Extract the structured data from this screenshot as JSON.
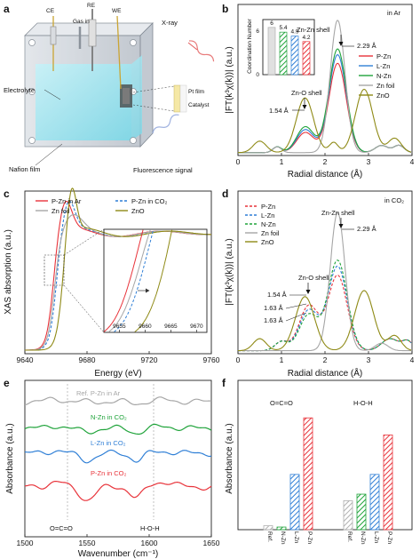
{
  "panels": {
    "a": {
      "label": "a",
      "electrode_labels": [
        "CE",
        "RE",
        "WE"
      ],
      "gas_in": "Gas in",
      "xray": "X-ray",
      "electrolyte": "Electrolyte",
      "nafion": "Nafion film",
      "pt_film": "Pt film",
      "catalyst": "Catalyst",
      "fluorescence": "Fluorescence signal"
    },
    "b": {
      "label": "b",
      "condition": "in Ar",
      "ylabel": "|FT(k³χ(k))| (a.u.)",
      "xlabel": "Radial distance (Å)",
      "xticks": [
        "0",
        "1",
        "2",
        "3",
        "4"
      ],
      "annot_znzn": "Zn-Zn shell",
      "annot_znzn_r": "2.29 Å",
      "annot_zno": "Zn-O shell",
      "annot_zno_r": "1.54 Å",
      "legend": [
        "P-Zn",
        "L-Zn",
        "N-Zn",
        "Zn foil",
        "ZnO"
      ],
      "inset_ylabel": "Coordination Number",
      "inset_yticks": [
        "0",
        "6"
      ],
      "inset_values_labels": [
        "6",
        "5.4",
        "4.9",
        "4.2"
      ]
    },
    "c": {
      "label": "c",
      "ylabel": "XAS absorption (a.u.)",
      "xlabel": "Energy (eV)",
      "xticks": [
        "9640",
        "9680",
        "9720",
        "9760"
      ],
      "legend": [
        "P-Zn in Ar",
        "P-Zn in CO₂",
        "Zn foil",
        "ZnO"
      ],
      "inset_xticks": [
        "9655",
        "9660",
        "9665",
        "9670"
      ]
    },
    "d": {
      "label": "d",
      "condition": "in CO₂",
      "ylabel": "|FT(k³χ(k))| (a.u.)",
      "xlabel": "Radial distance (Å)",
      "xticks": [
        "0",
        "1",
        "2",
        "3",
        "4"
      ],
      "annot_znzn": "Zn-Zn shell",
      "annot_znzn_r": "2.29 Å",
      "annot_zno": "Zn-O shell",
      "annot_zno_r": [
        "1.54 Å",
        "1.63 Å",
        "1.63 Å"
      ],
      "legend": [
        "P-Zn",
        "L-Zn",
        "N-Zn",
        "Zn foil",
        "ZnO"
      ]
    },
    "e": {
      "label": "e",
      "ylabel": "Absorbance (a.u.)",
      "xlabel": "Wavenumber (cm⁻¹)",
      "xticks": [
        "1500",
        "1550",
        "1600",
        "1650"
      ],
      "traces": [
        "Ref. P-Zn in Ar",
        "N-Zn in CO₂",
        "L-Zn in CO₂",
        "P-Zn in CO₂"
      ],
      "annot_oco": "O=C=O",
      "annot_hoh": "H-O-H"
    },
    "f": {
      "label": "f",
      "ylabel": "Absorbance (a.u.)",
      "group1": "O=C=O",
      "group2": "H-O-H",
      "categories": [
        "Ref.",
        "N-Zn",
        "L-Zn",
        "P-Zn"
      ]
    }
  },
  "colors": {
    "pzn": "#e8333a",
    "lzn": "#2f7fd6",
    "nzn": "#1fa33a",
    "foil": "#a6a6a6",
    "zno": "#8f8a16"
  },
  "chart_data": [
    {
      "panel": "b",
      "type": "line",
      "xlabel": "Radial distance (Å)",
      "ylabel": "|FT(k³χ(k))| (a.u.)",
      "xlim": [
        0,
        4
      ],
      "series": [
        {
          "name": "P-Zn",
          "peaks": [
            [
              1.55,
              0.14
            ],
            [
              2.29,
              0.62
            ]
          ]
        },
        {
          "name": "L-Zn",
          "peaks": [
            [
              1.55,
              0.16
            ],
            [
              2.29,
              0.68
            ]
          ]
        },
        {
          "name": "N-Zn",
          "peaks": [
            [
              1.55,
              0.18
            ],
            [
              2.29,
              0.72
            ]
          ]
        },
        {
          "name": "Zn foil",
          "peaks": [
            [
              2.29,
              0.92
            ]
          ]
        },
        {
          "name": "ZnO",
          "peaks": [
            [
              1.54,
              0.38
            ],
            [
              2.9,
              0.44
            ]
          ]
        }
      ],
      "inset": {
        "type": "bar",
        "categories": [
          "Zn foil",
          "N-Zn",
          "L-Zn",
          "P-Zn"
        ],
        "values": [
          6,
          5.4,
          4.9,
          4.2
        ],
        "ylim": [
          0,
          7
        ]
      }
    },
    {
      "panel": "c",
      "type": "line",
      "xlabel": "Energy (eV)",
      "ylabel": "XAS absorption (a.u.)",
      "xlim": [
        9640,
        9760
      ],
      "series": [
        {
          "name": "P-Zn in Ar",
          "edge": 9658
        },
        {
          "name": "P-Zn in CO₂",
          "edge": 9660
        },
        {
          "name": "Zn foil",
          "edge": 9659
        },
        {
          "name": "ZnO",
          "edge": 9664
        }
      ]
    },
    {
      "panel": "d",
      "type": "line",
      "xlabel": "Radial distance (Å)",
      "ylabel": "|FT(k³χ(k))| (a.u.)",
      "xlim": [
        0,
        4
      ],
      "series": [
        {
          "name": "P-Zn",
          "peaks": [
            [
              1.63,
              0.3
            ],
            [
              2.29,
              0.5
            ]
          ]
        },
        {
          "name": "L-Zn",
          "peaks": [
            [
              1.63,
              0.27
            ],
            [
              2.29,
              0.56
            ]
          ]
        },
        {
          "name": "N-Zn",
          "peaks": [
            [
              1.63,
              0.24
            ],
            [
              2.29,
              0.6
            ]
          ]
        },
        {
          "name": "Zn foil",
          "peaks": [
            [
              2.29,
              0.92
            ]
          ]
        },
        {
          "name": "ZnO",
          "peaks": [
            [
              1.54,
              0.36
            ],
            [
              2.9,
              0.4
            ]
          ]
        }
      ]
    },
    {
      "panel": "e",
      "type": "line",
      "xlabel": "Wavenumber (cm⁻¹)",
      "ylabel": "Absorbance (a.u.)",
      "xlim": [
        1500,
        1650
      ],
      "series": [
        {
          "name": "Ref. P-Zn in Ar"
        },
        {
          "name": "N-Zn in CO₂"
        },
        {
          "name": "L-Zn in CO₂"
        },
        {
          "name": "P-Zn in CO₂"
        }
      ]
    },
    {
      "panel": "f",
      "type": "bar",
      "ylabel": "Absorbance (a.u.)",
      "groups": [
        {
          "name": "O=C=O",
          "categories": [
            "Ref.",
            "N-Zn",
            "L-Zn",
            "P-Zn"
          ],
          "values": [
            0.03,
            0.02,
            0.42,
            0.85
          ]
        },
        {
          "name": "H-O-H",
          "categories": [
            "Ref.",
            "N-Zn",
            "L-Zn",
            "P-Zn"
          ],
          "values": [
            0.22,
            0.27,
            0.42,
            0.72
          ]
        }
      ],
      "ylim": [
        0,
        1
      ]
    }
  ]
}
